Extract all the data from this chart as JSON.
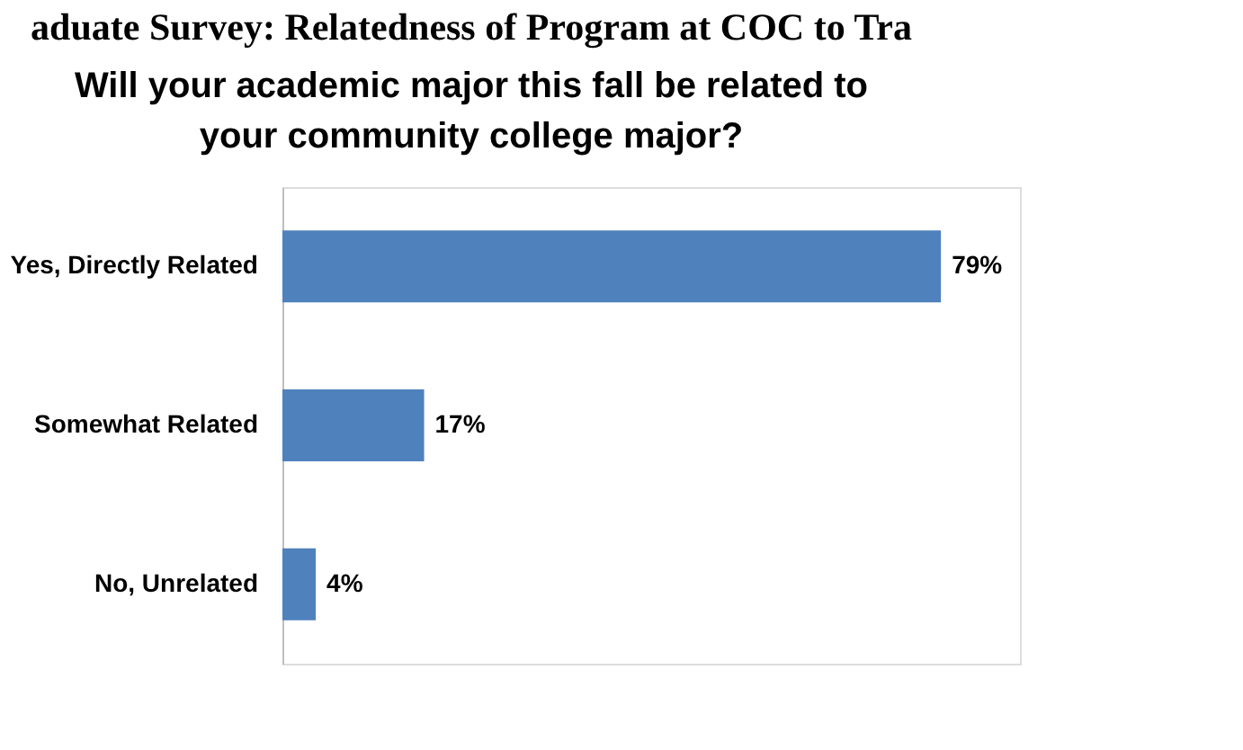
{
  "chart_data": {
    "type": "bar",
    "orientation": "horizontal",
    "title": "Will your academic major this fall be related to\nyour community college major?",
    "annotations": [
      "aduate Survey: Relatedness of Program at COC to Tra"
    ],
    "categories": [
      "Yes, Directly Related",
      "Somewhat Related",
      "No, Unrelated"
    ],
    "values": [
      79,
      17,
      4
    ],
    "value_labels": [
      "79%",
      "17%",
      "4%"
    ],
    "color": "#4f81bd",
    "grid": false
  }
}
